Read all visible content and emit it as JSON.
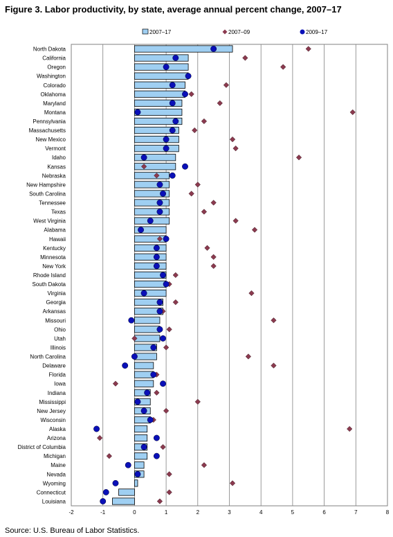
{
  "title": "Figure 3. Labor productivity, by state, average annual percent change, 2007–17",
  "source": "Source: U.S. Bureau of Labor Statistics.",
  "chart_data": {
    "type": "bar",
    "orientation": "horizontal",
    "xlim": [
      -2,
      8
    ],
    "xticks": [
      -2,
      -1,
      0,
      1,
      2,
      3,
      4,
      5,
      6,
      7,
      8
    ],
    "grid": true,
    "legend_position": "top",
    "colors": {
      "bar_fill": "#9fcff2",
      "bar_stroke": "#000000",
      "diamond": "#8b3a4f",
      "circle": "#0a10b8",
      "grid": "#808080"
    },
    "categories": [
      "North Dakota",
      "California",
      "Oregon",
      "Washington",
      "Colorado",
      "Oklahoma",
      "Maryland",
      "Montana",
      "Pennsylvania",
      "Massachusetts",
      "New Mexico",
      "Vermont",
      "Idaho",
      "Kansas",
      "Nebraska",
      "New Hampshire",
      "South Carolina",
      "Tennessee",
      "Texas",
      "West Virginia",
      "Alabama",
      "Hawaii",
      "Kentucky",
      "Minnesota",
      "New York",
      "Rhode Island",
      "South Dakota",
      "Virginia",
      "Georgia",
      "Arkansas",
      "Missouri",
      "Ohio",
      "Utah",
      "Illinois",
      "North Carolina",
      "Delaware",
      "Florida",
      "Iowa",
      "Indiana",
      "Mississippi",
      "New Jersey",
      "Wisconsin",
      "Alaska",
      "Arizona",
      "District of Columbia",
      "Michigan",
      "Maine",
      "Nevada",
      "Wyoming",
      "Connecticut",
      "Louisiana"
    ],
    "series": [
      {
        "name": "2007–17",
        "marker": "bar",
        "values": [
          3.1,
          1.7,
          1.7,
          1.7,
          1.6,
          1.6,
          1.5,
          1.5,
          1.5,
          1.4,
          1.4,
          1.4,
          1.3,
          1.3,
          1.1,
          1.1,
          1.1,
          1.1,
          1.1,
          1.1,
          1.0,
          1.0,
          1.0,
          1.0,
          1.0,
          1.0,
          1.0,
          1.0,
          0.9,
          0.9,
          0.8,
          0.8,
          0.8,
          0.7,
          0.7,
          0.6,
          0.6,
          0.6,
          0.5,
          0.5,
          0.5,
          0.5,
          0.4,
          0.4,
          0.4,
          0.4,
          0.3,
          0.3,
          0.1,
          -0.5,
          -0.7
        ]
      },
      {
        "name": "2007–09",
        "marker": "diamond",
        "values": [
          5.5,
          3.5,
          4.7,
          1.7,
          2.9,
          1.8,
          2.7,
          6.9,
          2.2,
          1.9,
          3.1,
          3.2,
          5.2,
          0.3,
          0.7,
          2.0,
          1.8,
          2.5,
          2.2,
          3.2,
          3.8,
          0.8,
          2.3,
          2.5,
          2.5,
          1.3,
          1.1,
          3.7,
          1.3,
          0.9,
          4.4,
          1.1,
          0.0,
          1.0,
          3.6,
          4.4,
          0.7,
          -0.6,
          0.7,
          2.0,
          1.0,
          0.6,
          6.8,
          -1.1,
          0.9,
          -0.8,
          2.2,
          1.1,
          3.1,
          1.1,
          0.8
        ]
      },
      {
        "name": "2009–17",
        "marker": "circle",
        "values": [
          2.5,
          1.3,
          1.0,
          1.7,
          1.2,
          1.6,
          1.2,
          0.1,
          1.3,
          1.2,
          1.0,
          1.0,
          0.3,
          1.6,
          1.2,
          0.8,
          0.9,
          0.8,
          0.8,
          0.5,
          0.2,
          1.0,
          0.7,
          0.7,
          0.7,
          0.9,
          1.0,
          0.3,
          0.8,
          0.8,
          -0.1,
          0.8,
          0.9,
          0.6,
          0.0,
          -0.3,
          0.6,
          0.9,
          0.4,
          0.1,
          0.3,
          0.5,
          -1.2,
          0.7,
          0.3,
          0.7,
          -0.2,
          0.1,
          -0.6,
          -0.9,
          -1.0
        ]
      }
    ]
  }
}
